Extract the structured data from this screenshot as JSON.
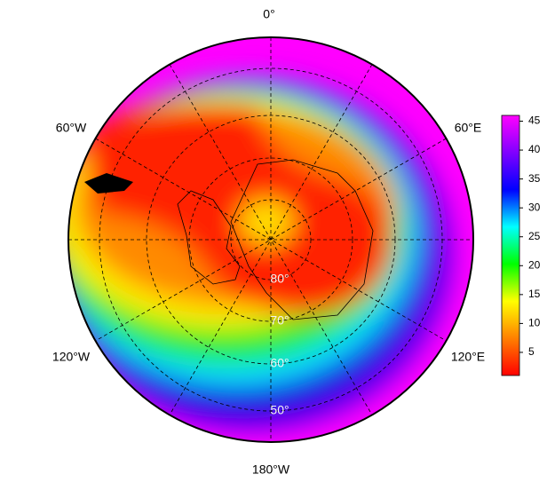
{
  "map": {
    "longitude_labels": [
      "0°",
      "60°E",
      "120°E",
      "180°W",
      "120°W",
      "60°W"
    ],
    "latitude_labels": [
      "80°",
      "70°",
      "60°",
      "50°"
    ],
    "colorbar": {
      "range": [
        1,
        46
      ],
      "ticks": [
        5,
        10,
        15,
        20,
        25,
        30,
        35,
        40,
        45
      ],
      "colormap": [
        "#ff0000",
        "#ff8000",
        "#ffff00",
        "#00ff00",
        "#00ffff",
        "#0000ff",
        "#8000ff",
        "#ff00ff"
      ]
    }
  }
}
